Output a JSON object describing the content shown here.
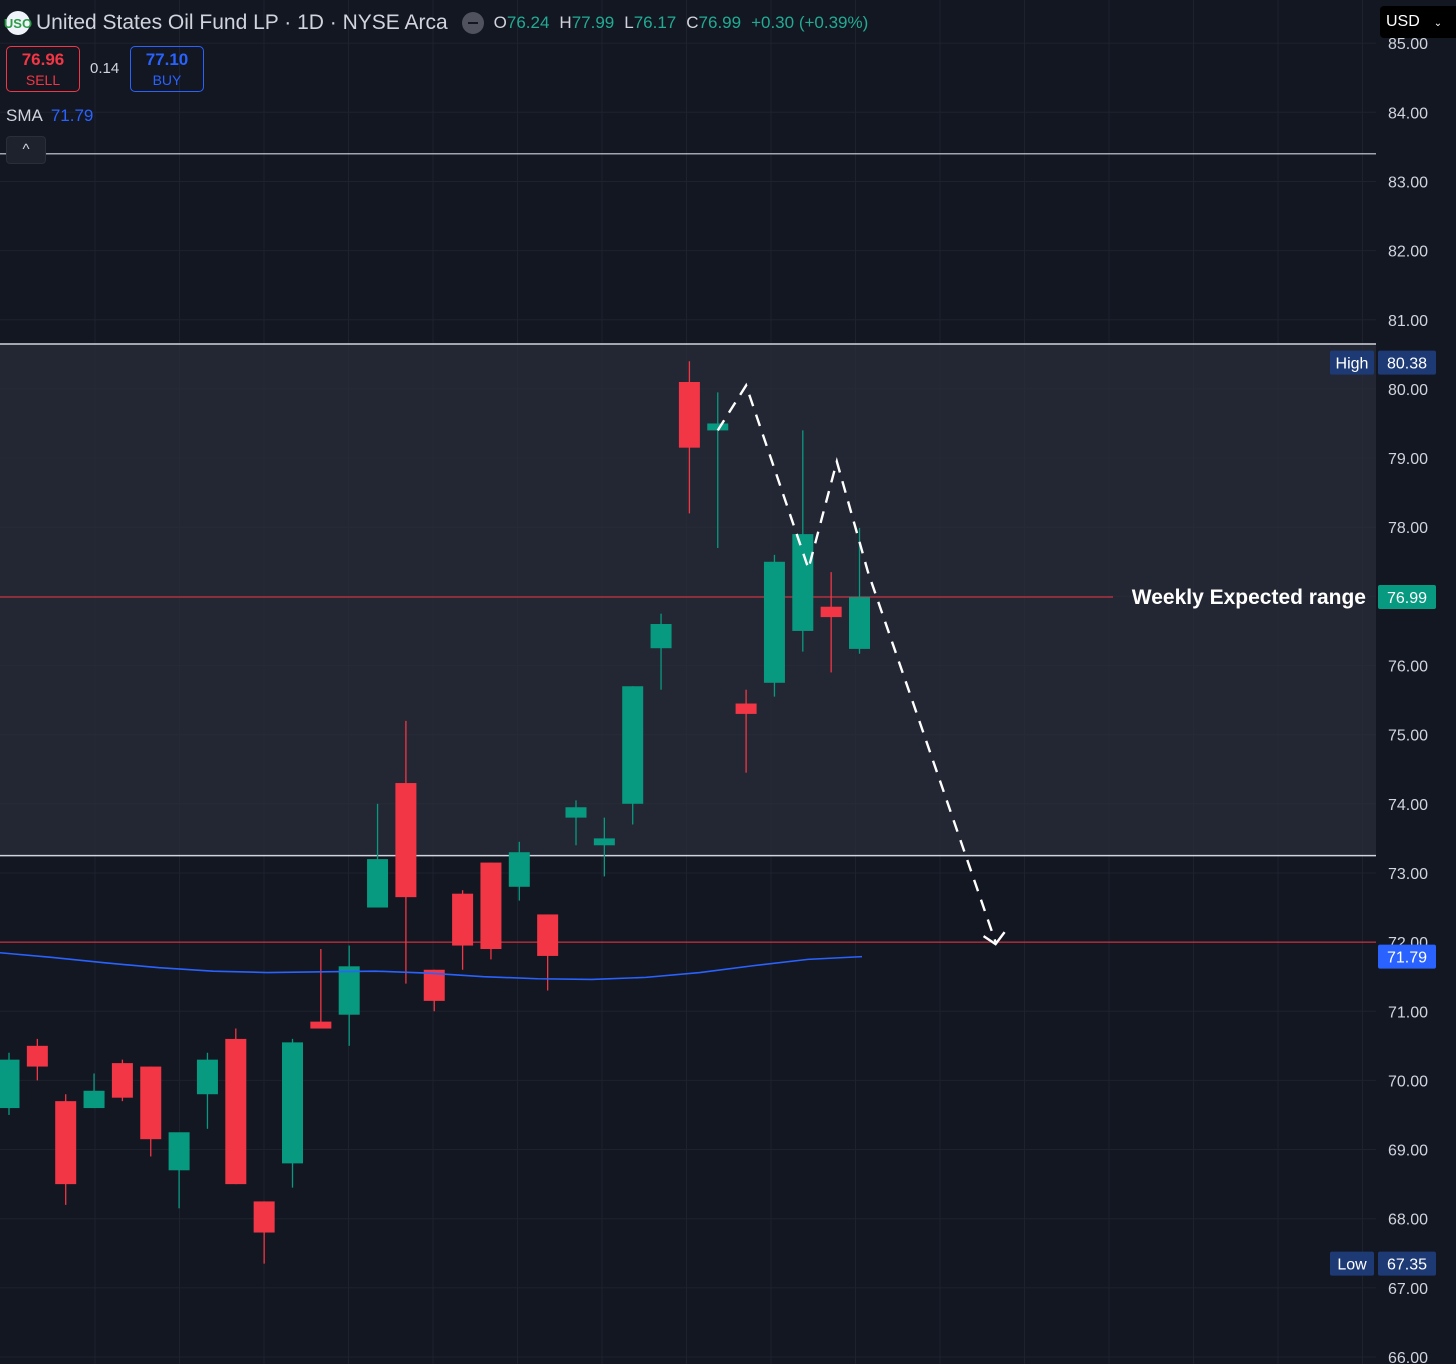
{
  "header": {
    "logo": "USO",
    "title": "United States Oil Fund LP · 1D · NYSE Arca",
    "open_label": "O",
    "open": "76.24",
    "high_label": "H",
    "high": "77.99",
    "low_label": "L",
    "low": "76.17",
    "close_label": "C",
    "close": "76.99",
    "change": "+0.30 (+0.39%)"
  },
  "trade": {
    "sell_price": "76.96",
    "sell_label": "SELL",
    "spread": "0.14",
    "buy_price": "77.10",
    "buy_label": "BUY"
  },
  "indicator": {
    "name": "SMA",
    "value": "71.79",
    "collapse_icon": "^"
  },
  "currency": {
    "label": "USD"
  },
  "colors": {
    "up": "#089981",
    "down": "#f23645",
    "sma": "#2962ff",
    "background": "#131722",
    "zone": "#2a2e39"
  },
  "chart_data": {
    "type": "candlestick",
    "y_axis": {
      "min": 66,
      "max": 85,
      "ticks": [
        "84.00",
        "83.00",
        "82.00",
        "81.00",
        "80.00",
        "79.00",
        "78.00",
        "77.00",
        "76.00",
        "75.00",
        "74.00",
        "73.00",
        "72.00",
        "71.00",
        "70.00",
        "69.00",
        "68.00",
        "67.00",
        "66.00",
        "85.00"
      ]
    },
    "candles": [
      {
        "o": 69.6,
        "h": 70.4,
        "l": 69.5,
        "c": 70.3
      },
      {
        "o": 70.5,
        "h": 70.6,
        "l": 70.0,
        "c": 70.2
      },
      {
        "o": 69.7,
        "h": 69.8,
        "l": 68.2,
        "c": 68.5
      },
      {
        "o": 69.6,
        "h": 70.1,
        "l": 69.6,
        "c": 69.85
      },
      {
        "o": 70.25,
        "h": 70.3,
        "l": 69.7,
        "c": 69.75
      },
      {
        "o": 70.2,
        "h": 70.2,
        "l": 68.9,
        "c": 69.15
      },
      {
        "o": 68.7,
        "h": 69.1,
        "l": 68.15,
        "c": 69.25
      },
      {
        "o": 69.8,
        "h": 70.4,
        "l": 69.3,
        "c": 70.3
      },
      {
        "o": 70.6,
        "h": 70.75,
        "l": 68.5,
        "c": 68.5
      },
      {
        "o": 68.25,
        "h": 68.25,
        "l": 67.35,
        "c": 67.8
      },
      {
        "o": 68.8,
        "h": 70.6,
        "l": 68.45,
        "c": 70.55
      },
      {
        "o": 70.85,
        "h": 71.9,
        "l": 70.8,
        "c": 70.75
      },
      {
        "o": 70.95,
        "h": 71.95,
        "l": 70.5,
        "c": 71.65
      },
      {
        "o": 72.5,
        "h": 74.0,
        "l": 72.5,
        "c": 73.2
      },
      {
        "o": 74.3,
        "h": 75.2,
        "l": 71.4,
        "c": 72.65
      },
      {
        "o": 71.6,
        "h": 71.6,
        "l": 71.0,
        "c": 71.15
      },
      {
        "o": 72.7,
        "h": 72.75,
        "l": 71.6,
        "c": 71.95
      },
      {
        "o": 73.15,
        "h": 73.15,
        "l": 71.75,
        "c": 71.9
      },
      {
        "o": 72.8,
        "h": 73.45,
        "l": 72.6,
        "c": 73.3
      },
      {
        "o": 72.4,
        "h": 72.4,
        "l": 71.3,
        "c": 71.8
      },
      {
        "o": 73.8,
        "h": 74.05,
        "l": 73.4,
        "c": 73.95
      },
      {
        "o": 73.4,
        "h": 73.8,
        "l": 72.95,
        "c": 73.5
      },
      {
        "o": 74.0,
        "h": 75.7,
        "l": 73.7,
        "c": 75.7
      },
      {
        "o": 76.25,
        "h": 76.75,
        "l": 75.65,
        "c": 76.6
      },
      {
        "o": 80.1,
        "h": 80.4,
        "l": 78.2,
        "c": 79.15
      },
      {
        "o": 79.4,
        "h": 79.95,
        "l": 77.7,
        "c": 79.5
      },
      {
        "o": 75.45,
        "h": 75.65,
        "l": 74.45,
        "c": 75.3
      },
      {
        "o": 75.75,
        "h": 77.6,
        "l": 75.55,
        "c": 77.5
      },
      {
        "o": 76.5,
        "h": 79.4,
        "l": 76.2,
        "c": 77.9
      },
      {
        "o": 76.85,
        "h": 77.35,
        "l": 75.9,
        "c": 76.7
      },
      {
        "o": 76.24,
        "h": 77.99,
        "l": 76.17,
        "c": 76.99
      }
    ],
    "sma_series": {
      "name": "SMA",
      "values": [
        71.85,
        71.78,
        71.7,
        71.63,
        71.58,
        71.56,
        71.57,
        71.58,
        71.55,
        71.5,
        71.47,
        71.46,
        71.49,
        71.56,
        71.66,
        71.75,
        71.79
      ]
    },
    "levels": {
      "box_top": 80.65,
      "box_bottom": 73.25,
      "top_line": 83.4,
      "weekly_expected": 76.99,
      "target": 72.0
    },
    "labels": {
      "high_tag": "High",
      "high_value": "80.38",
      "low_tag": "Low",
      "low_value": "67.35",
      "weekly_label": "Weekly Expected range",
      "weekly_value": "76.99",
      "sma_value": "71.79"
    },
    "projection_path": [
      [
        25,
        79.4
      ],
      [
        26,
        80.05
      ],
      [
        28.2,
        77.4
      ],
      [
        29.2,
        78.95
      ],
      [
        30.3,
        77.35
      ],
      [
        34.8,
        72.0
      ]
    ]
  }
}
